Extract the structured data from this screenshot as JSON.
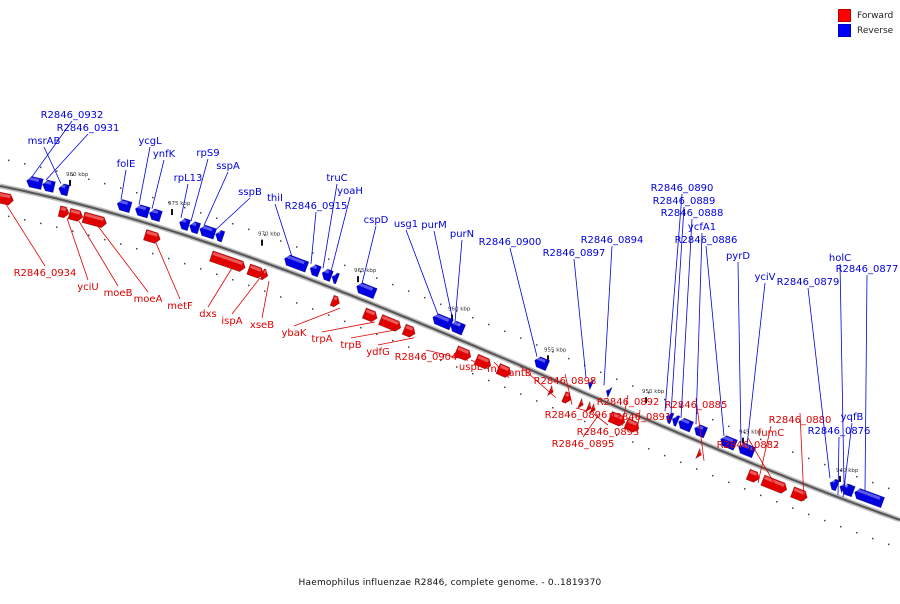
{
  "legend": {
    "forward_label": "Forward",
    "reverse_label": "Reverse",
    "forward_color": "#ff0000",
    "reverse_color": "#0000ff"
  },
  "caption": "Haemophilus influenzae R2846, complete genome. - 0..1819370",
  "colors": {
    "forward": "#e00000",
    "reverse": "#0000e0",
    "axis": "#777777"
  },
  "ticks": [
    {
      "label": "980 kbp",
      "kbp": 980
    },
    {
      "label": "975 kbp",
      "kbp": 975
    },
    {
      "label": "970 kbp",
      "kbp": 970
    },
    {
      "label": "965 kbp",
      "kbp": 965
    },
    {
      "label": "960 kbp",
      "kbp": 960
    },
    {
      "label": "955 kbp",
      "kbp": 955
    },
    {
      "label": "950 kbp",
      "kbp": 950
    },
    {
      "label": "945 kbp",
      "kbp": 945
    },
    {
      "label": "940 kbp",
      "kbp": 940
    }
  ],
  "genes_forward": [
    {
      "name": "R2846_0934"
    },
    {
      "name": "yciU"
    },
    {
      "name": "moeB"
    },
    {
      "name": "moeA"
    },
    {
      "name": "metF"
    },
    {
      "name": "dxs"
    },
    {
      "name": "ispA"
    },
    {
      "name": "xseB"
    },
    {
      "name": "ybaK"
    },
    {
      "name": "trpA"
    },
    {
      "name": "trpB"
    },
    {
      "name": "ydfG"
    },
    {
      "name": "R2846_0904"
    },
    {
      "name": "uspE"
    },
    {
      "name": "fnr"
    },
    {
      "name": "antB"
    },
    {
      "name": "R2846_0898"
    },
    {
      "name": "R2846_0896"
    },
    {
      "name": "R2846_0893"
    },
    {
      "name": "R2846_0895"
    },
    {
      "name": "R2846_0892"
    },
    {
      "name": "R2846_0891"
    },
    {
      "name": "R2846_0885"
    },
    {
      "name": "fumC"
    },
    {
      "name": "R2846_0882"
    },
    {
      "name": "R2846_0880"
    }
  ],
  "genes_reverse": [
    {
      "name": "R2846_0932"
    },
    {
      "name": "R2846_0931"
    },
    {
      "name": "msrAB"
    },
    {
      "name": "folE"
    },
    {
      "name": "ycgL"
    },
    {
      "name": "ynfK"
    },
    {
      "name": "rpL13"
    },
    {
      "name": "rpS9"
    },
    {
      "name": "sspA"
    },
    {
      "name": "sspB"
    },
    {
      "name": "thiI"
    },
    {
      "name": "R2846_0915"
    },
    {
      "name": "truC"
    },
    {
      "name": "yoaH"
    },
    {
      "name": "cspD"
    },
    {
      "name": "usg1"
    },
    {
      "name": "purM"
    },
    {
      "name": "purN"
    },
    {
      "name": "R2846_0900"
    },
    {
      "name": "R2846_0897"
    },
    {
      "name": "R2846_0894"
    },
    {
      "name": "R2846_0890"
    },
    {
      "name": "R2846_0889"
    },
    {
      "name": "R2846_0888"
    },
    {
      "name": "ycfA1"
    },
    {
      "name": "R2846_0886"
    },
    {
      "name": "pyrD"
    },
    {
      "name": "yciV"
    },
    {
      "name": "R2846_0879"
    },
    {
      "name": "holC"
    },
    {
      "name": "R2846_0877"
    },
    {
      "name": "yqfB"
    },
    {
      "name": "R2846_0876"
    }
  ]
}
